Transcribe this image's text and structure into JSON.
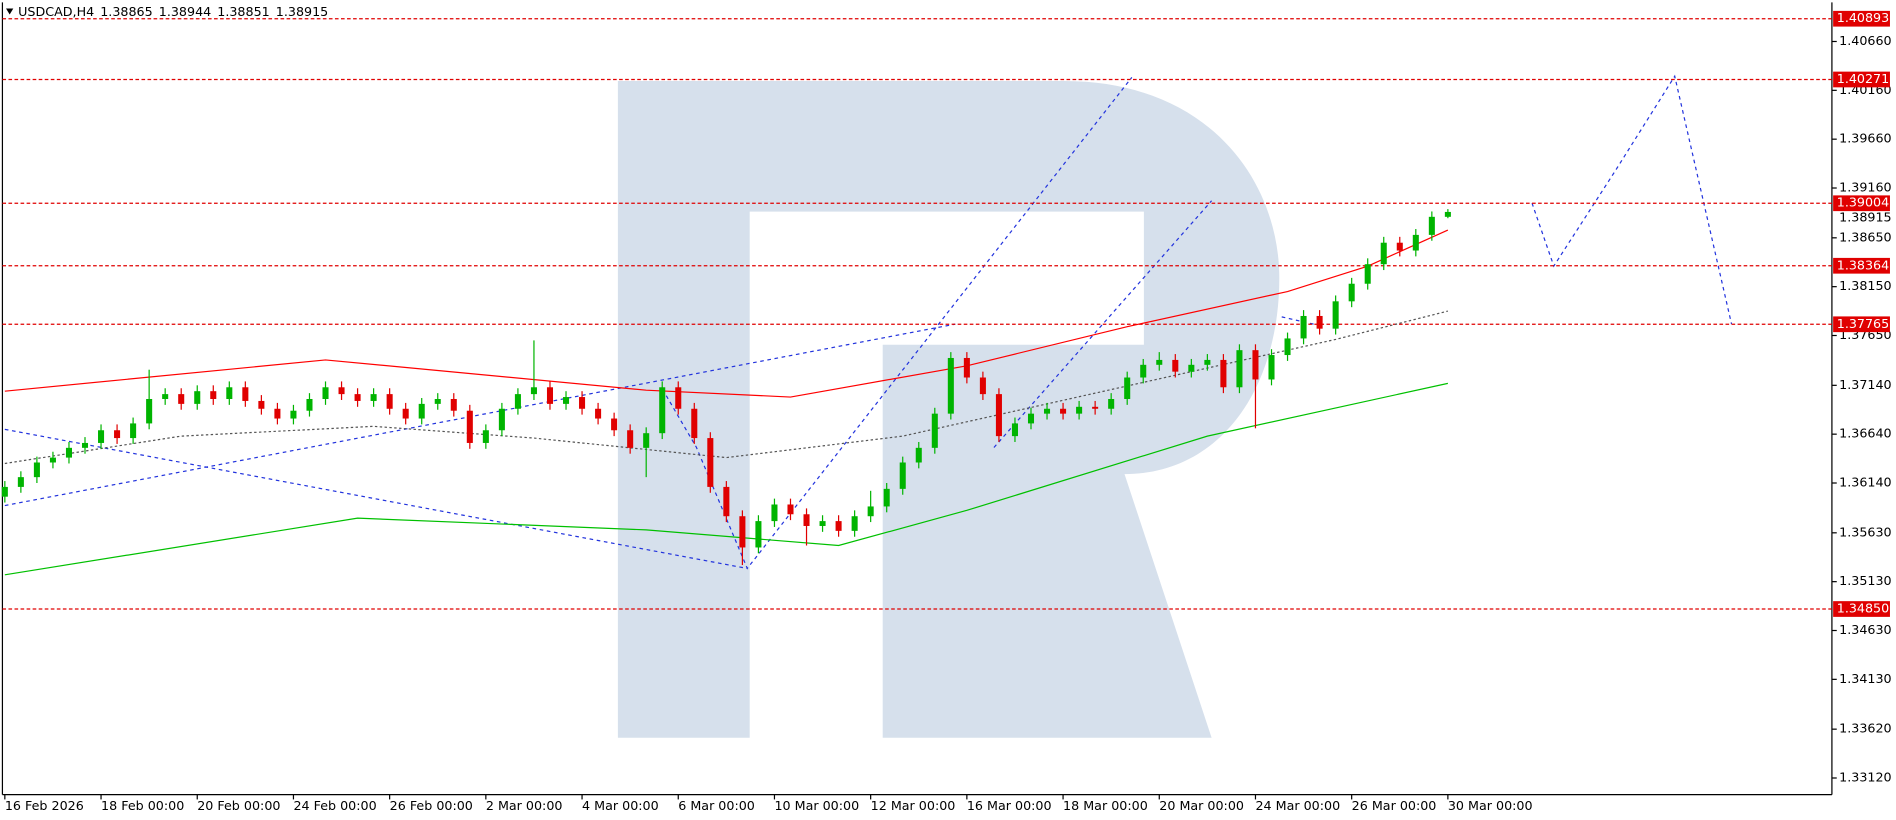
{
  "chart_data": {
    "type": "candlestick",
    "title": "USDCAD,H4",
    "up_color": "#00b400",
    "down_color": "#e00000",
    "ylim": [
      1.3295,
      1.4106
    ],
    "yticks": [
      {
        "value": 1.4066,
        "label": "1.40660"
      },
      {
        "value": 1.4016,
        "label": "1.40160"
      },
      {
        "value": 1.3966,
        "label": "1.39660"
      },
      {
        "value": 1.3916,
        "label": "1.39160"
      },
      {
        "value": 1.3865,
        "label": "1.38650"
      },
      {
        "value": 1.3815,
        "label": "1.38150"
      },
      {
        "value": 1.3765,
        "label": "1.37650"
      },
      {
        "value": 1.3714,
        "label": "1.37140"
      },
      {
        "value": 1.3664,
        "label": "1.36640"
      },
      {
        "value": 1.3614,
        "label": "1.36140"
      },
      {
        "value": 1.3563,
        "label": "1.35630"
      },
      {
        "value": 1.3513,
        "label": "1.35130"
      },
      {
        "value": 1.3463,
        "label": "1.34630"
      },
      {
        "value": 1.3413,
        "label": "1.34130"
      },
      {
        "value": 1.3362,
        "label": "1.33620"
      },
      {
        "value": 1.3312,
        "label": "1.33120"
      }
    ],
    "xticks": [
      {
        "value": 0,
        "label": "16 Feb 2026"
      },
      {
        "value": 6,
        "label": "18 Feb 00:00"
      },
      {
        "value": 12,
        "label": "20 Feb 00:00"
      },
      {
        "value": 18,
        "label": "24 Feb 00:00"
      },
      {
        "value": 24,
        "label": "26 Feb 00:00"
      },
      {
        "value": 30,
        "label": "2 Mar 00:00"
      },
      {
        "value": 36,
        "label": "4 Mar 00:00"
      },
      {
        "value": 42,
        "label": "6 Mar 00:00"
      },
      {
        "value": 48,
        "label": "10 Mar 00:00"
      },
      {
        "value": 54,
        "label": "12 Mar 00:00"
      },
      {
        "value": 60,
        "label": "16 Mar 00:00"
      },
      {
        "value": 66,
        "label": "18 Mar 00:00"
      },
      {
        "value": 72,
        "label": "20 Mar 00:00"
      },
      {
        "value": 78,
        "label": "24 Mar 00:00"
      },
      {
        "value": 84,
        "label": "26 Mar 00:00"
      },
      {
        "value": 90,
        "label": "30 Mar 00:00"
      }
    ],
    "levels": [
      1.40893,
      1.40271,
      1.39004,
      1.38364,
      1.37765,
      {
        "value": 1.3485,
        "label": "1.34850"
      }
    ],
    "level_color": "#e00000",
    "open": [
      1.36,
      1.361,
      1.362,
      1.3635,
      1.364,
      1.365,
      1.3655,
      1.3668,
      1.366,
      1.3675,
      1.37,
      1.3705,
      1.3695,
      1.3708,
      1.37,
      1.3712,
      1.3698,
      1.369,
      1.368,
      1.3688,
      1.37,
      1.3712,
      1.3705,
      1.3698,
      1.3705,
      1.369,
      1.368,
      1.3695,
      1.37,
      1.3688,
      1.3655,
      1.3668,
      1.369,
      1.3705,
      1.3712,
      1.3695,
      1.3702,
      1.369,
      1.368,
      1.3668,
      1.365,
      1.3665,
      1.3712,
      1.369,
      1.366,
      1.361,
      1.358,
      1.3548,
      1.3575,
      1.3592,
      1.3582,
      1.357,
      1.3575,
      1.3565,
      1.358,
      1.359,
      1.3608,
      1.3635,
      1.365,
      1.3685,
      1.3742,
      1.3722,
      1.3705,
      1.3662,
      1.3675,
      1.3685,
      1.369,
      1.3685,
      1.3692,
      1.369,
      1.37,
      1.3722,
      1.3735,
      1.374,
      1.3728,
      1.3735,
      1.374,
      1.3712,
      1.375,
      1.372,
      1.3745,
      1.3762,
      1.3785,
      1.3772,
      1.38,
      1.3818,
      1.3838,
      1.386,
      1.3852,
      1.3868,
      1.38865
    ],
    "high": [
      1.3616,
      1.3626,
      1.3641,
      1.3646,
      1.3656,
      1.3661,
      1.3674,
      1.3674,
      1.3681,
      1.373,
      1.3711,
      1.3711,
      1.3714,
      1.3714,
      1.3718,
      1.3718,
      1.3704,
      1.3696,
      1.3694,
      1.3706,
      1.3718,
      1.3718,
      1.3711,
      1.3711,
      1.3711,
      1.3696,
      1.3701,
      1.3706,
      1.3706,
      1.3694,
      1.3674,
      1.3696,
      1.3711,
      1.376,
      1.3718,
      1.3708,
      1.3708,
      1.3696,
      1.3686,
      1.3674,
      1.3671,
      1.3718,
      1.3718,
      1.3696,
      1.3666,
      1.3616,
      1.3586,
      1.3581,
      1.3598,
      1.3598,
      1.3588,
      1.3581,
      1.3581,
      1.3586,
      1.3606,
      1.3614,
      1.3641,
      1.3656,
      1.3691,
      1.3748,
      1.3748,
      1.3728,
      1.3711,
      1.3681,
      1.3691,
      1.3696,
      1.3696,
      1.3698,
      1.3698,
      1.3706,
      1.3728,
      1.3741,
      1.3748,
      1.3746,
      1.3741,
      1.3746,
      1.3746,
      1.3756,
      1.3756,
      1.3751,
      1.3768,
      1.3791,
      1.3791,
      1.3806,
      1.3824,
      1.3844,
      1.3866,
      1.3866,
      1.3874,
      1.3892,
      1.38944
    ],
    "low": [
      1.3594,
      1.3604,
      1.3614,
      1.3629,
      1.3634,
      1.3644,
      1.3649,
      1.3654,
      1.3654,
      1.3669,
      1.3694,
      1.3689,
      1.3689,
      1.3694,
      1.3694,
      1.3692,
      1.3684,
      1.3674,
      1.3674,
      1.3682,
      1.3694,
      1.3699,
      1.3692,
      1.3692,
      1.3684,
      1.3674,
      1.3674,
      1.3689,
      1.3682,
      1.3649,
      1.3649,
      1.3662,
      1.3684,
      1.3699,
      1.3689,
      1.3689,
      1.3684,
      1.3674,
      1.3662,
      1.3644,
      1.362,
      1.3659,
      1.3684,
      1.3654,
      1.3604,
      1.3574,
      1.353,
      1.3542,
      1.3569,
      1.3576,
      1.355,
      1.3564,
      1.3559,
      1.3559,
      1.3574,
      1.3584,
      1.3602,
      1.3629,
      1.3644,
      1.3679,
      1.3716,
      1.3699,
      1.3656,
      1.3656,
      1.3669,
      1.3679,
      1.3679,
      1.3679,
      1.3684,
      1.3684,
      1.3694,
      1.3716,
      1.3729,
      1.3722,
      1.3722,
      1.3729,
      1.3706,
      1.3706,
      1.367,
      1.3714,
      1.3739,
      1.3756,
      1.3766,
      1.3766,
      1.3794,
      1.3812,
      1.3832,
      1.3846,
      1.3846,
      1.3862,
      1.38851
    ],
    "close": [
      1.361,
      1.362,
      1.3635,
      1.364,
      1.365,
      1.3655,
      1.3668,
      1.366,
      1.3675,
      1.37,
      1.3705,
      1.3695,
      1.3708,
      1.37,
      1.3712,
      1.3698,
      1.369,
      1.368,
      1.3688,
      1.37,
      1.3712,
      1.3705,
      1.3698,
      1.3705,
      1.369,
      1.368,
      1.3695,
      1.37,
      1.3688,
      1.3655,
      1.3668,
      1.369,
      1.3705,
      1.3712,
      1.3695,
      1.3702,
      1.369,
      1.368,
      1.3668,
      1.365,
      1.3665,
      1.3712,
      1.369,
      1.366,
      1.361,
      1.358,
      1.3548,
      1.3575,
      1.3592,
      1.3582,
      1.357,
      1.3575,
      1.3565,
      1.358,
      1.359,
      1.3608,
      1.3635,
      1.365,
      1.3685,
      1.3742,
      1.3722,
      1.3705,
      1.3662,
      1.3675,
      1.3685,
      1.369,
      1.3685,
      1.3692,
      1.369,
      1.37,
      1.3722,
      1.3735,
      1.374,
      1.3728,
      1.3735,
      1.374,
      1.3712,
      1.375,
      1.372,
      1.3745,
      1.3762,
      1.3785,
      1.3772,
      1.38,
      1.3818,
      1.3838,
      1.386,
      1.3852,
      1.3868,
      1.38865,
      1.38915
    ],
    "overlays": [
      {
        "color": "#ff0000",
        "x": [
          0,
          20,
          40,
          49,
          60,
          70,
          80,
          85,
          90
        ],
        "values": [
          1.3708,
          1.374,
          1.3709,
          1.3702,
          1.3734,
          1.3774,
          1.381,
          1.3836,
          1.3873
        ]
      },
      {
        "color": "#00c000",
        "x": [
          0,
          22,
          40,
          52,
          60,
          75,
          90
        ],
        "values": [
          1.352,
          1.3578,
          1.3566,
          1.355,
          1.3586,
          1.3662,
          1.3716
        ]
      },
      {
        "color": "#555555",
        "dashed": true,
        "x": [
          0,
          11,
          23,
          33,
          45,
          56,
          68,
          83,
          90
        ],
        "values": [
          1.3634,
          1.3662,
          1.3672,
          1.366,
          1.364,
          1.3662,
          1.3706,
          1.3761,
          1.379
        ]
      }
    ]
  }
}
